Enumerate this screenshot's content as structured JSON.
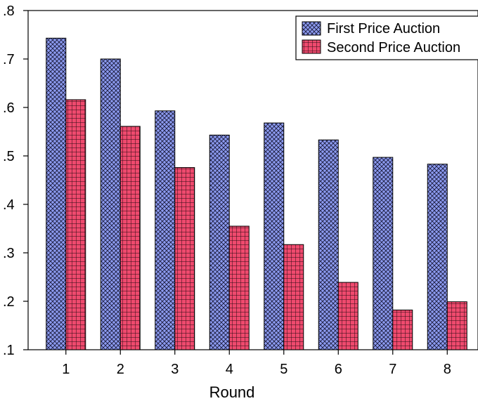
{
  "chart_data": {
    "type": "bar",
    "title": "",
    "xlabel": "Round",
    "ylabel": "",
    "categories": [
      "1",
      "2",
      "3",
      "4",
      "5",
      "6",
      "7",
      "8"
    ],
    "ylim": [
      0.1,
      0.8
    ],
    "yticks": [
      0.1,
      0.2,
      0.3,
      0.4,
      0.5,
      0.6,
      0.7,
      0.8
    ],
    "ytick_labels": [
      ".1",
      ".2",
      ".3",
      ".4",
      ".5",
      ".6",
      ".7",
      ".8"
    ],
    "grid": false,
    "legend_position": "top-right",
    "series": [
      {
        "name": "First Price Auction",
        "values": [
          0.743,
          0.7,
          0.593,
          0.543,
          0.568,
          0.533,
          0.497,
          0.483
        ],
        "color": "#8c9bf0",
        "pattern": "crosshatch-diagonal"
      },
      {
        "name": "Second Price Auction",
        "values": [
          0.616,
          0.561,
          0.476,
          0.355,
          0.317,
          0.239,
          0.182,
          0.199
        ],
        "color": "#ef4a6e",
        "pattern": "crosshatch-grid"
      }
    ]
  }
}
